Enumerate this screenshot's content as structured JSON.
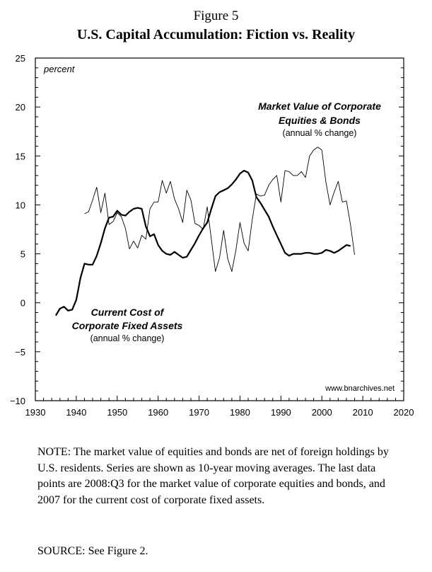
{
  "figure": {
    "label": "Figure 5",
    "title": "U.S. Capital Accumulation: Fiction vs. Reality"
  },
  "chart_data": {
    "type": "line",
    "xlim": [
      1930,
      2020
    ],
    "ylim": [
      -10,
      25
    ],
    "xticks": [
      1930,
      1940,
      1950,
      1960,
      1970,
      1980,
      1990,
      2000,
      2010,
      2020
    ],
    "yticks": [
      -10,
      -5,
      0,
      5,
      10,
      15,
      20,
      25
    ],
    "ylabel": "percent",
    "watermark": "www.bnarchives.net",
    "series": [
      {
        "name": "Market Value of Corporate Equities & Bonds",
        "label_line1": "Market Value of Corporate",
        "label_line2": "Equities & Bonds",
        "sublabel": "(annual % change)",
        "style": "thin",
        "x": [
          1942,
          1943,
          1944,
          1945,
          1946,
          1947,
          1948,
          1949,
          1950,
          1951,
          1952,
          1953,
          1954,
          1955,
          1956,
          1957,
          1958,
          1959,
          1960,
          1961,
          1962,
          1963,
          1964,
          1965,
          1966,
          1967,
          1968,
          1969,
          1970,
          1971,
          1972,
          1973,
          1974,
          1975,
          1976,
          1977,
          1978,
          1979,
          1980,
          1981,
          1982,
          1983,
          1984,
          1985,
          1986,
          1987,
          1988,
          1989,
          1990,
          1991,
          1992,
          1993,
          1994,
          1995,
          1996,
          1997,
          1998,
          1999,
          2000,
          2001,
          2002,
          2003,
          2004,
          2005,
          2006,
          2007,
          2008
        ],
        "y": [
          9.1,
          9.3,
          10.5,
          11.8,
          9.2,
          11.2,
          8.0,
          8.3,
          9.2,
          8.8,
          7.6,
          5.5,
          6.3,
          5.6,
          6.9,
          6.5,
          9.6,
          10.3,
          10.3,
          12.5,
          11.2,
          12.4,
          10.6,
          9.6,
          8.2,
          11.5,
          10.5,
          8.1,
          7.9,
          7.5,
          9.8,
          6.5,
          3.2,
          4.6,
          7.4,
          4.5,
          3.2,
          5.4,
          8.2,
          6.1,
          5.3,
          8.5,
          11.1,
          10.9,
          11.0,
          12.0,
          12.6,
          13.0,
          10.3,
          13.5,
          13.4,
          13.0,
          13.0,
          13.4,
          12.8,
          15.0,
          15.6,
          15.9,
          15.6,
          12.3,
          10.0,
          11.3,
          12.4,
          10.3,
          10.4,
          8.0,
          4.9
        ]
      },
      {
        "name": "Current Cost of Corporate Fixed Assets",
        "label_line1": "Current Cost of",
        "label_line2": "Corporate Fixed Assets",
        "sublabel": "(annual % change)",
        "style": "thick",
        "x": [
          1935,
          1936,
          1937,
          1938,
          1939,
          1940,
          1941,
          1942,
          1943,
          1944,
          1945,
          1946,
          1947,
          1948,
          1949,
          1950,
          1951,
          1952,
          1953,
          1954,
          1955,
          1956,
          1957,
          1958,
          1959,
          1960,
          1961,
          1962,
          1963,
          1964,
          1965,
          1966,
          1967,
          1968,
          1969,
          1970,
          1971,
          1972,
          1973,
          1974,
          1975,
          1976,
          1977,
          1978,
          1979,
          1980,
          1981,
          1982,
          1983,
          1984,
          1985,
          1986,
          1987,
          1988,
          1989,
          1990,
          1991,
          1992,
          1993,
          1994,
          1995,
          1996,
          1997,
          1998,
          1999,
          2000,
          2001,
          2002,
          2003,
          2004,
          2005,
          2006,
          2007
        ],
        "y": [
          -1.3,
          -0.6,
          -0.4,
          -0.8,
          -0.7,
          0.3,
          2.5,
          4.0,
          3.9,
          3.9,
          4.8,
          6.1,
          7.6,
          8.7,
          8.8,
          9.4,
          9.0,
          8.9,
          9.3,
          9.6,
          9.7,
          9.6,
          7.8,
          6.8,
          7.0,
          5.9,
          5.3,
          5.0,
          4.9,
          5.2,
          4.9,
          4.6,
          4.7,
          5.4,
          6.1,
          6.9,
          7.6,
          8.2,
          9.6,
          10.9,
          11.3,
          11.5,
          11.7,
          12.1,
          12.6,
          13.2,
          13.5,
          13.3,
          12.5,
          10.8,
          10.2,
          9.5,
          8.8,
          7.8,
          6.9,
          6.0,
          5.1,
          4.8,
          5.0,
          5.0,
          5.0,
          5.1,
          5.1,
          5.0,
          5.0,
          5.1,
          5.4,
          5.3,
          5.1,
          5.3,
          5.6,
          5.9,
          5.8
        ]
      }
    ]
  },
  "note": "NOTE: The market value of equities and bonds are net of foreign holdings by U.S. residents. Series are shown as 10-year moving averages. The last data points are 2008:Q3 for the market value of corporate equities and bonds, and 2007 for the current cost of corporate fixed assets.",
  "source": "SOURCE: See Figure 2."
}
